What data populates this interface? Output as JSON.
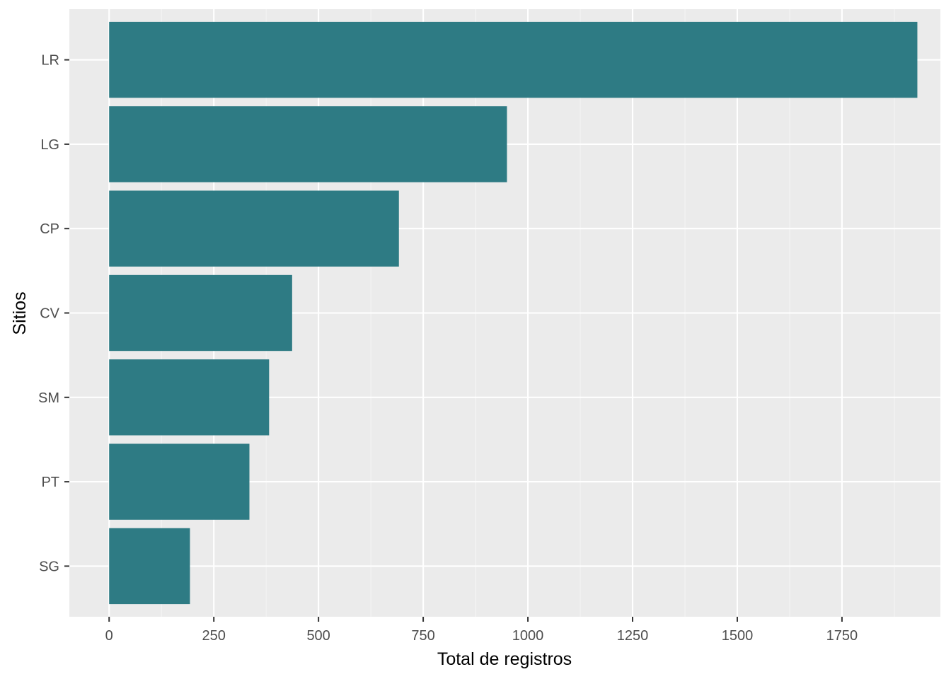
{
  "chart_data": {
    "type": "bar",
    "orientation": "horizontal",
    "categories": [
      "LR",
      "LG",
      "CP",
      "CV",
      "SM",
      "PT",
      "SG"
    ],
    "values": [
      1930,
      950,
      692,
      437,
      382,
      335,
      193
    ],
    "xlabel": "Total de registros",
    "ylabel": "Sitios",
    "xlim": [
      -95,
      1985
    ],
    "x_ticks": [
      0,
      250,
      500,
      750,
      1000,
      1250,
      1500,
      1750
    ],
    "x_tick_labels": [
      "0",
      "250",
      "500",
      "750",
      "1000",
      "1250",
      "1500",
      "1750"
    ],
    "grid": true,
    "legend": "none"
  },
  "colors": {
    "bar": "#2e7b84",
    "panel": "#ebebeb",
    "grid_major": "#ffffff",
    "grid_minor": "#f4f4f4",
    "tick": "#333333",
    "tick_label": "#4d4d4d"
  }
}
